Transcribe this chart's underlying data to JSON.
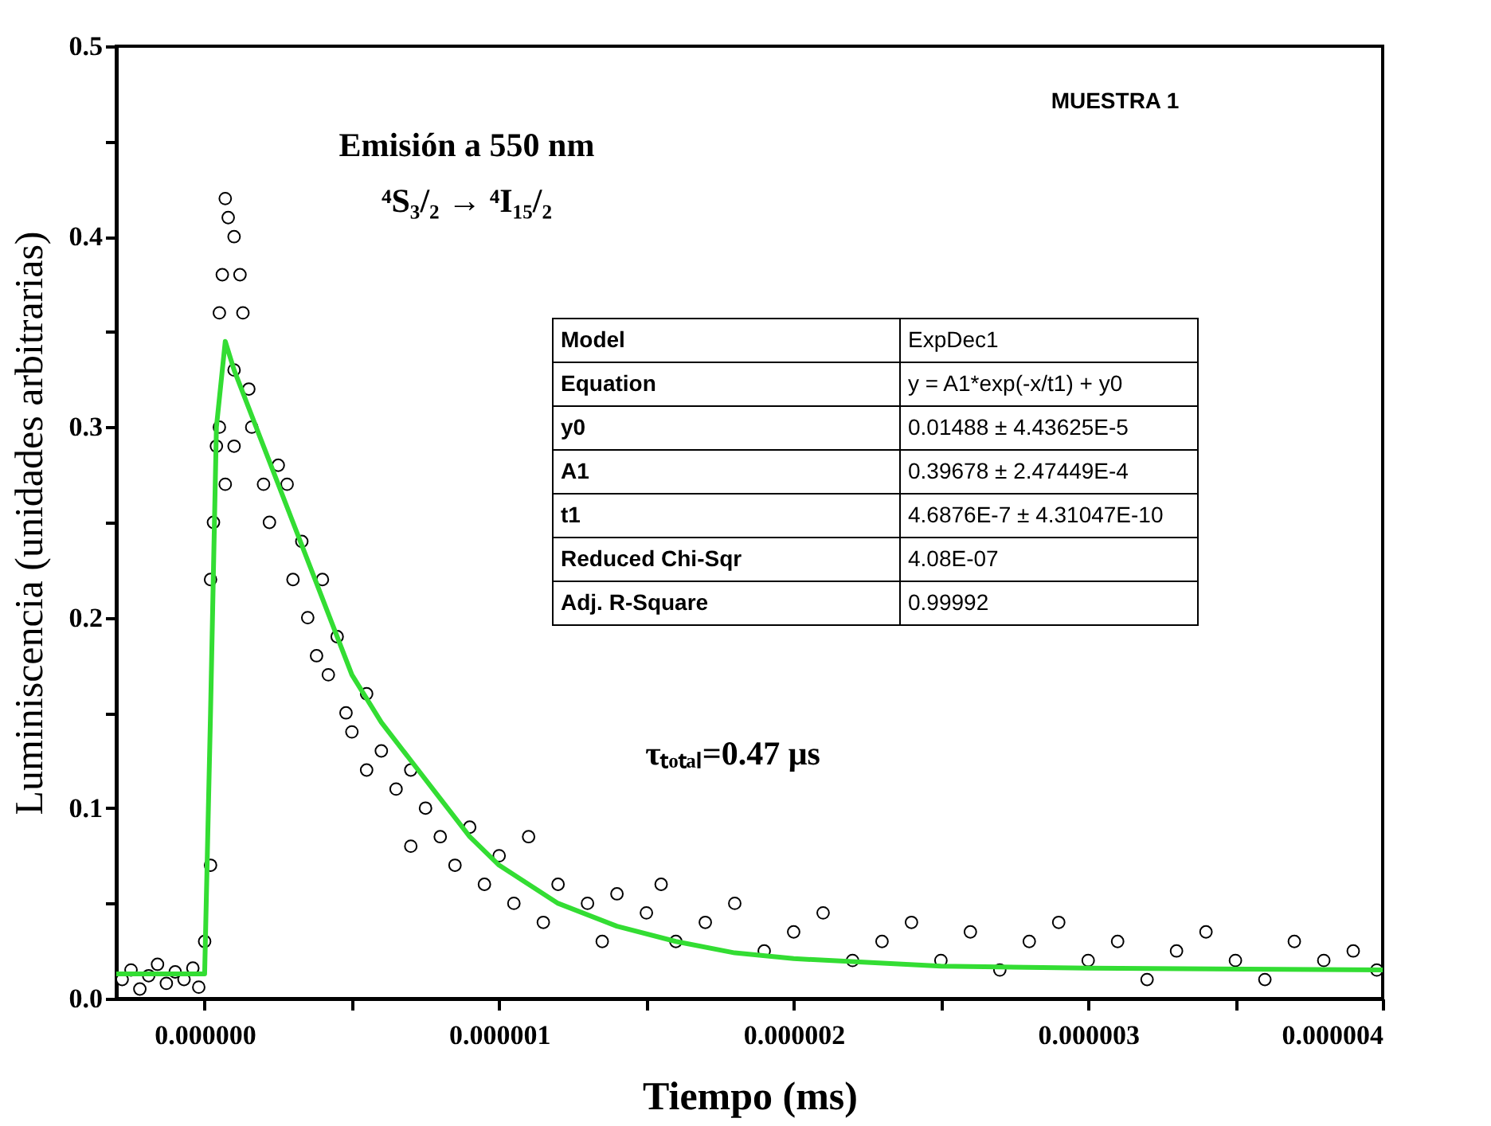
{
  "chart_data": {
    "type": "scatter",
    "xlabel": "Tiempo (ms)",
    "ylabel": "Luminiscencia (unidades arbitrarias)",
    "xlim": [
      -3e-07,
      4e-06
    ],
    "ylim": [
      0,
      0.5
    ],
    "xticks": [
      {
        "value": 0,
        "label": "0.000000"
      },
      {
        "value": 5e-07,
        "label": null
      },
      {
        "value": 1e-06,
        "label": "0.000001"
      },
      {
        "value": 1.5e-06,
        "label": null
      },
      {
        "value": 2e-06,
        "label": "0.000002"
      },
      {
        "value": 2.5e-06,
        "label": null
      },
      {
        "value": 3e-06,
        "label": "0.000003"
      },
      {
        "value": 3.5e-06,
        "label": null
      },
      {
        "value": 4e-06,
        "label": "0.000004"
      }
    ],
    "yticks": [
      {
        "value": 0,
        "label": "0.0"
      },
      {
        "value": 0.05,
        "label": null
      },
      {
        "value": 0.1,
        "label": "0.1"
      },
      {
        "value": 0.15,
        "label": null
      },
      {
        "value": 0.2,
        "label": "0.2"
      },
      {
        "value": 0.25,
        "label": null
      },
      {
        "value": 0.3,
        "label": "0.3"
      },
      {
        "value": 0.35,
        "label": null
      },
      {
        "value": 0.4,
        "label": "0.4"
      },
      {
        "value": 0.45,
        "label": null
      },
      {
        "value": 0.5,
        "label": "0.5"
      }
    ],
    "grid": false,
    "series": [
      {
        "marker": "circle",
        "color": "#000000",
        "x": [
          -2.8e-07,
          -2.5e-07,
          -2.2e-07,
          -1.9e-07,
          -1.6e-07,
          -1.3e-07,
          -1e-07,
          -7e-08,
          -4e-08,
          -2e-08,
          0,
          2e-08,
          2e-08,
          3e-08,
          4e-08,
          5e-08,
          5e-08,
          6e-08,
          7e-08,
          8e-08,
          1e-07,
          1.2e-07,
          1e-07,
          1.3e-07,
          1.5e-07,
          7e-08,
          1e-07,
          1.6e-07,
          2e-07,
          2.2e-07,
          2.5e-07,
          2.8e-07,
          3e-07,
          3.3e-07,
          3.5e-07,
          3.8e-07,
          4e-07,
          4.2e-07,
          4.5e-07,
          4.8e-07,
          5e-07,
          5.5e-07,
          5.5e-07,
          6e-07,
          6.5e-07,
          7e-07,
          7e-07,
          7.5e-07,
          8e-07,
          8.5e-07,
          9e-07,
          9.5e-07,
          1e-06,
          1.05e-06,
          1.1e-06,
          1.15e-06,
          1.2e-06,
          1.3e-06,
          1.35e-06,
          1.4e-06,
          1.5e-06,
          1.55e-06,
          1.6e-06,
          1.7e-06,
          1.8e-06,
          1.9e-06,
          2e-06,
          2.1e-06,
          2.2e-06,
          2.3e-06,
          2.4e-06,
          2.5e-06,
          2.6e-06,
          2.7e-06,
          2.8e-06,
          2.9e-06,
          3e-06,
          3.1e-06,
          3.2e-06,
          3.3e-06,
          3.4e-06,
          3.5e-06,
          3.6e-06,
          3.7e-06,
          3.8e-06,
          3.9e-06,
          3.98e-06
        ],
        "values": [
          0.01,
          0.015,
          0.005,
          0.012,
          0.018,
          0.008,
          0.014,
          0.01,
          0.016,
          0.006,
          0.03,
          0.07,
          0.22,
          0.25,
          0.29,
          0.3,
          0.36,
          0.38,
          0.42,
          0.41,
          0.4,
          0.38,
          0.33,
          0.36,
          0.32,
          0.27,
          0.29,
          0.3,
          0.27,
          0.25,
          0.28,
          0.27,
          0.22,
          0.24,
          0.2,
          0.18,
          0.22,
          0.17,
          0.19,
          0.15,
          0.14,
          0.16,
          0.12,
          0.13,
          0.11,
          0.12,
          0.08,
          0.1,
          0.085,
          0.07,
          0.09,
          0.06,
          0.075,
          0.05,
          0.085,
          0.04,
          0.06,
          0.05,
          0.03,
          0.055,
          0.045,
          0.06,
          0.03,
          0.04,
          0.05,
          0.025,
          0.035,
          0.045,
          0.02,
          0.03,
          0.04,
          0.02,
          0.035,
          0.015,
          0.03,
          0.04,
          0.02,
          0.03,
          0.01,
          0.025,
          0.035,
          0.02,
          0.01,
          0.03,
          0.02,
          0.025,
          0.015
        ]
      },
      {
        "type": "line",
        "line_style": "solid",
        "color": "#33dd33",
        "x": [
          -3e-07,
          0,
          2e-08,
          4e-08,
          7e-08,
          1e-07,
          2e-07,
          3e-07,
          4e-07,
          5e-07,
          6e-07,
          7e-07,
          8e-07,
          9e-07,
          1e-06,
          1.2e-06,
          1.4e-06,
          1.6e-06,
          1.8e-06,
          2e-06,
          2.5e-06,
          3e-06,
          4e-06
        ],
        "values": [
          0.013,
          0.013,
          0.15,
          0.3,
          0.345,
          0.33,
          0.29,
          0.25,
          0.21,
          0.17,
          0.145,
          0.125,
          0.105,
          0.085,
          0.07,
          0.05,
          0.038,
          0.03,
          0.024,
          0.021,
          0.017,
          0.016,
          0.015
        ]
      }
    ],
    "annotations": [
      "MUESTRA 1",
      "Emisión a 550 nm",
      "⁴S₃/₂ → ⁴I₁₅/₂",
      "τₜₒₜₐₗ=0.47 μs",
      "Model",
      "ExpDec1",
      "Equation",
      "y = A1*exp(-x/t1) + y0",
      "y0",
      "0.01488 ± 4.43625E-5",
      "A1",
      "0.39678 ± 2.47449E-4",
      "t1",
      "4.6876E-7 ± 4.31047E-10",
      "Reduced Chi-Sqr",
      "4.08E-07",
      "Adj. R-Square",
      "0.99992"
    ]
  }
}
